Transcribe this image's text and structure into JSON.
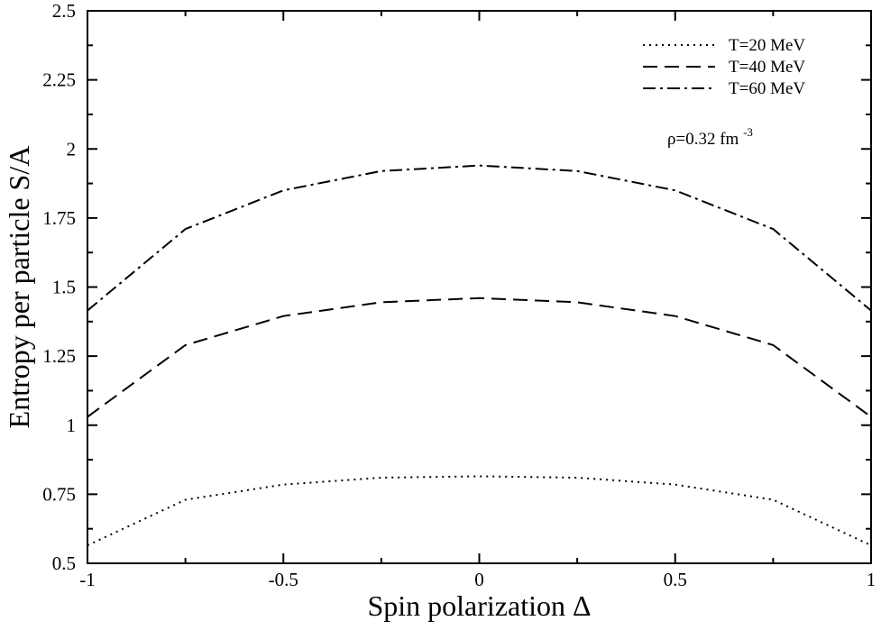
{
  "chart_data": {
    "type": "line",
    "title": "",
    "xlabel": "Spin polarization Δ",
    "ylabel": "Entropy per particle S/A",
    "xlim": [
      -1,
      1
    ],
    "ylim": [
      0.5,
      2.5
    ],
    "x_ticks": [
      -1,
      -0.5,
      0,
      0.5,
      1
    ],
    "x_tick_labels": [
      "-1",
      "-0.5",
      "0",
      "0.5",
      "1"
    ],
    "y_ticks": [
      0.5,
      0.75,
      1,
      1.25,
      1.5,
      1.75,
      2,
      2.25,
      2.5
    ],
    "y_tick_labels": [
      "0.5",
      "0.75",
      "1",
      "1.25",
      "1.5",
      "1.75",
      "2",
      "2.25",
      "2.5"
    ],
    "grid": false,
    "legend_position": "top-right",
    "x": [
      -1,
      -0.75,
      -0.5,
      -0.25,
      0,
      0.25,
      0.5,
      0.75,
      1
    ],
    "series": [
      {
        "name": "T=20 MeV",
        "style": "dotted",
        "values": [
          0.565,
          0.73,
          0.785,
          0.81,
          0.815,
          0.81,
          0.785,
          0.73,
          0.565
        ]
      },
      {
        "name": "T=40 MeV",
        "style": "dashed",
        "values": [
          1.03,
          1.29,
          1.395,
          1.445,
          1.46,
          1.445,
          1.395,
          1.29,
          1.03
        ]
      },
      {
        "name": "T=60 MeV",
        "style": "dashdot",
        "values": [
          1.415,
          1.71,
          1.85,
          1.92,
          1.94,
          1.92,
          1.85,
          1.71,
          1.415
        ]
      }
    ],
    "annotation": {
      "prefix": "ρ=0.32 fm",
      "superscript": "-3"
    }
  }
}
